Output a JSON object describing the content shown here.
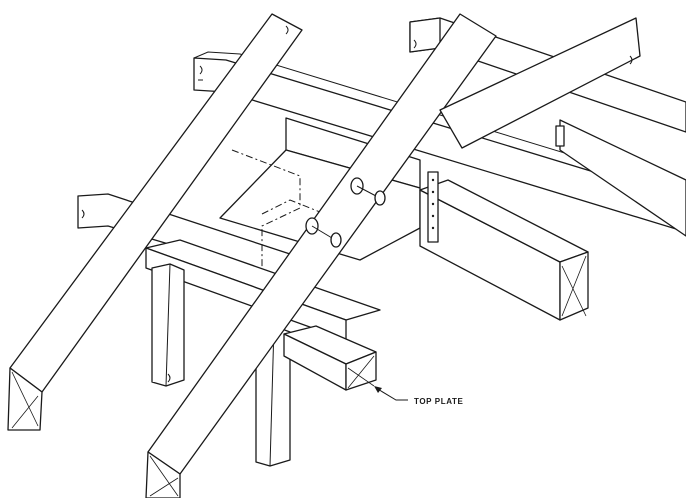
{
  "labels": {
    "top_plate": "TOP PLATE"
  },
  "colors": {
    "line": "#1a1a1a",
    "background": "#ffffff"
  }
}
